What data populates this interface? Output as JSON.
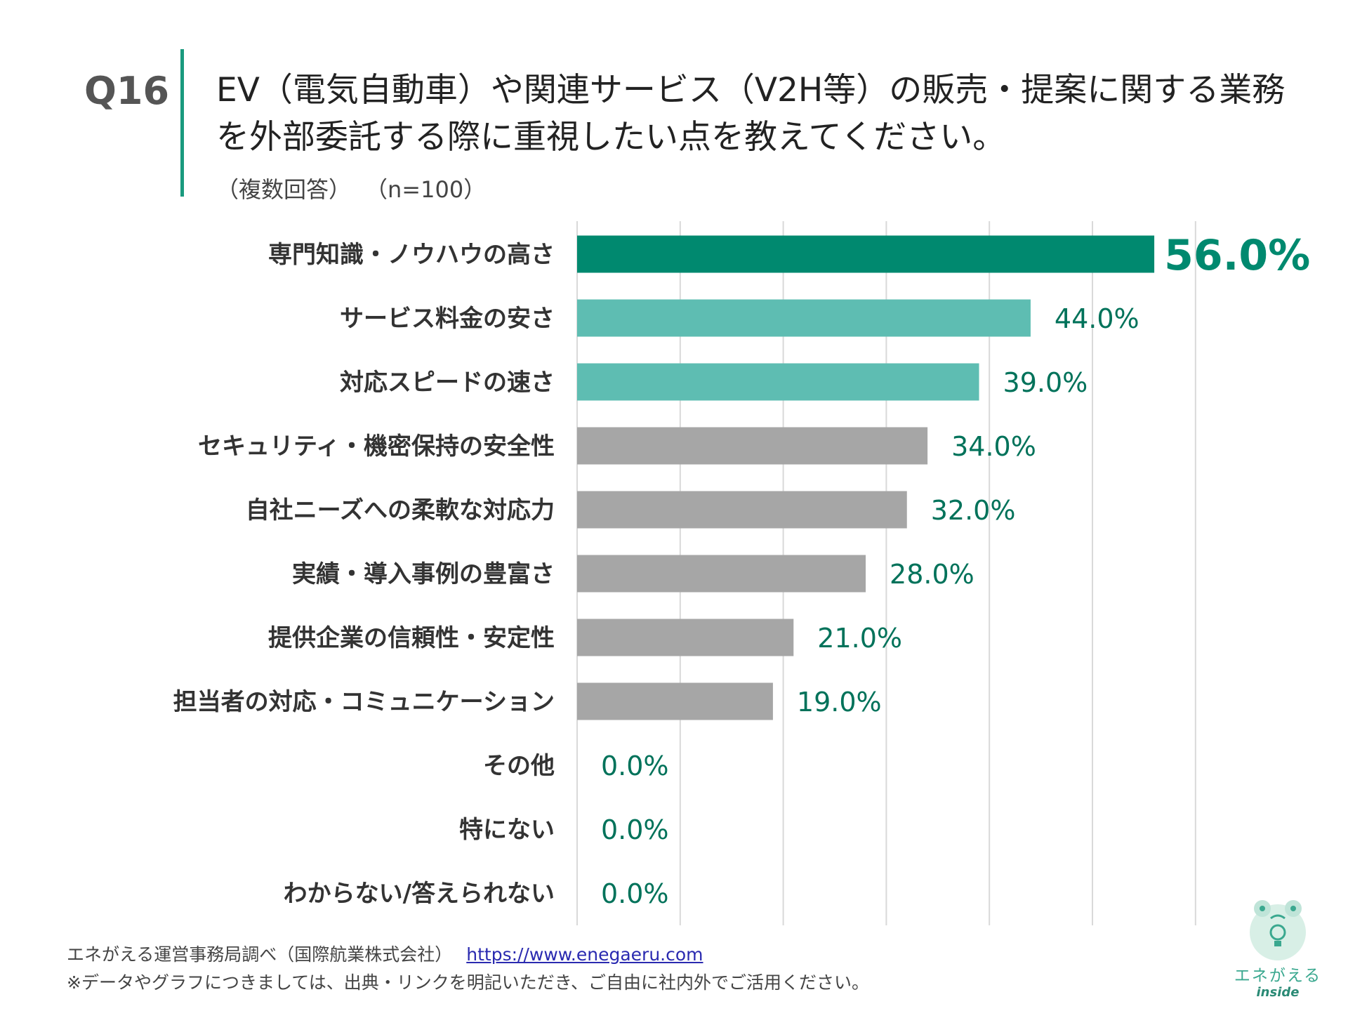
{
  "question": {
    "number": "Q16",
    "title_line1": "EV（電気自動車）や関連サービス（V2H等）の販売・提案に関する業務",
    "title_line2": "を外部委託する際に重視したい点を教えてください。",
    "note": "（複数回答）",
    "sample": "（n=100）"
  },
  "chart_data": {
    "type": "bar",
    "orientation": "horizontal",
    "categories": [
      "専門知識・ノウハウの高さ",
      "サービス料金の安さ",
      "対応スピードの速さ",
      "セキュリティ・機密保持の安全性",
      "自社ニーズへの柔軟な対応力",
      "実績・導入事例の豊富さ",
      "提供企業の信頼性・安定性",
      "担当者の対応・コミュニケーション",
      "その他",
      "特にない",
      "わからない/答えられない"
    ],
    "values": [
      56.0,
      44.0,
      39.0,
      34.0,
      32.0,
      28.0,
      21.0,
      19.0,
      0.0,
      0.0,
      0.0
    ],
    "value_labels": [
      "56.0%",
      "44.0%",
      "39.0%",
      "34.0%",
      "32.0%",
      "28.0%",
      "21.0%",
      "19.0%",
      "0.0%",
      "0.0%",
      "0.0%"
    ],
    "xlim": [
      0,
      60
    ],
    "grid": true,
    "colors": {
      "top": "#00896f",
      "second": "#5ebdb2",
      "others": "#a6a6a6",
      "label": "#00725a",
      "gridline": "#d9d9d9"
    }
  },
  "footer": {
    "source": "エネがえる運営事務局調べ（国際航業株式会社）",
    "url": "https://www.enegaeru.com",
    "note": "※データやグラフにつきましては、出典・リンクを明記いただき、ご自由に社内外でご活用ください。"
  },
  "logo": {
    "icon": "frog-lightbulb-icon",
    "name": "エネがえる",
    "sub": "inside"
  }
}
